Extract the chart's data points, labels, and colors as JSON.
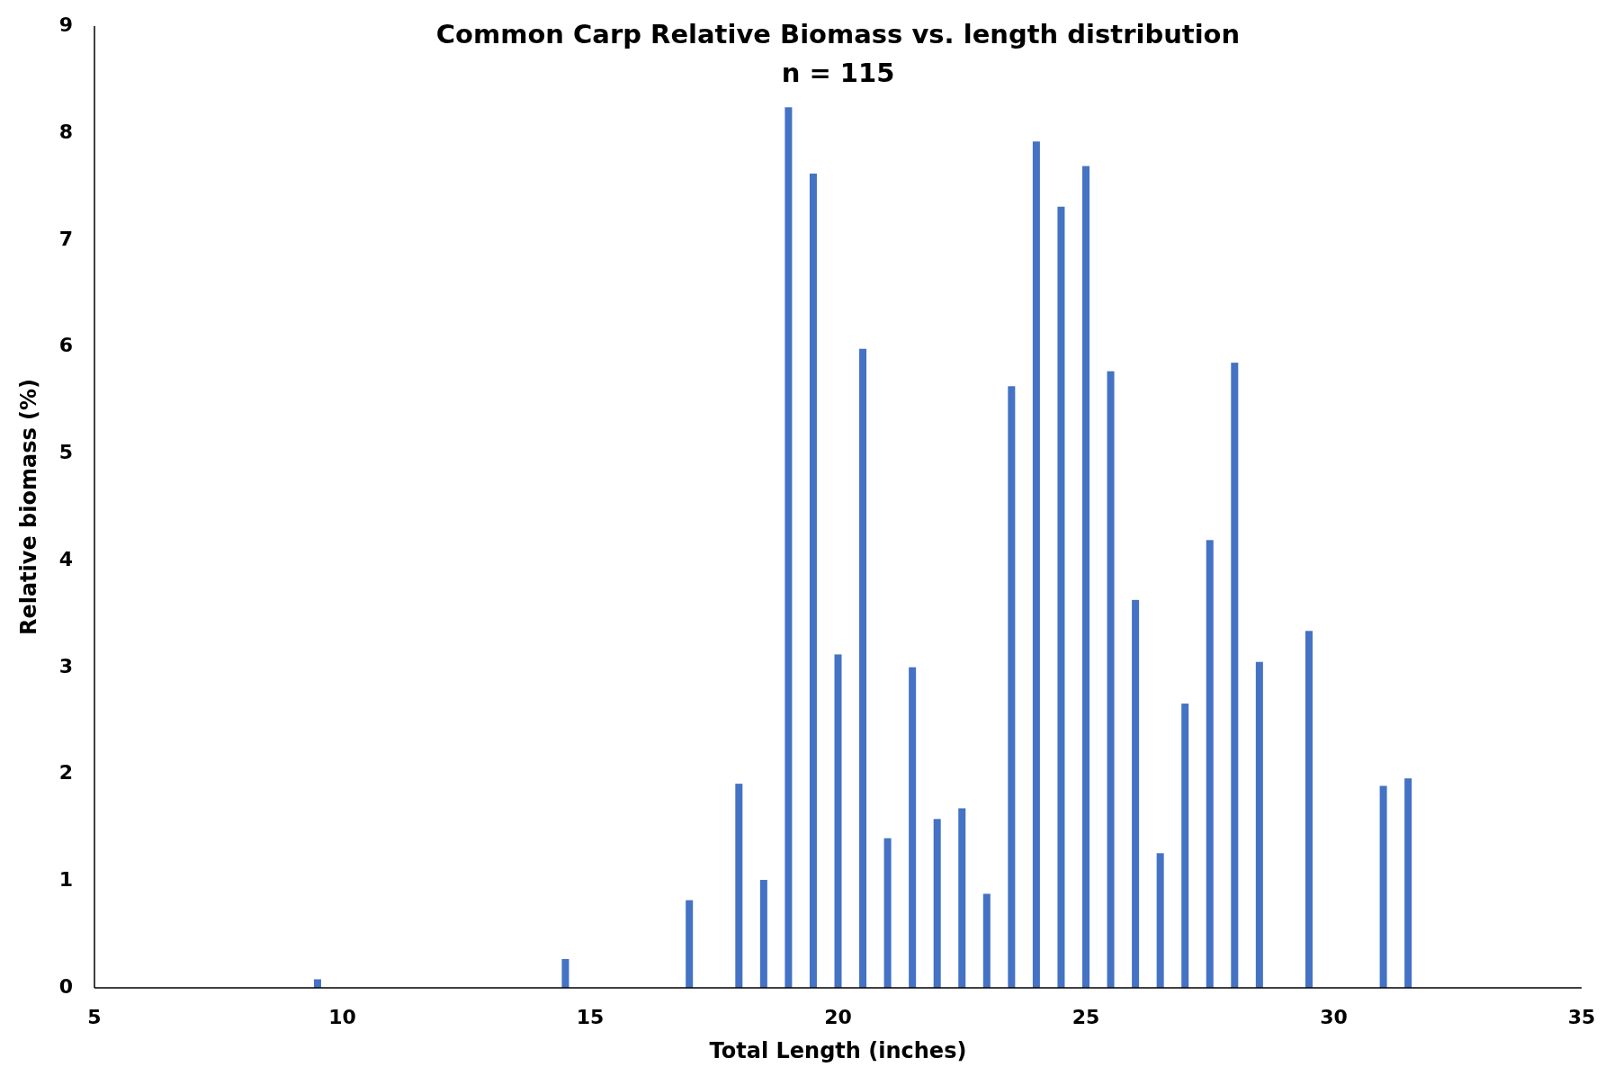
{
  "chart_data": {
    "type": "bar",
    "title": "Common Carp Relative Biomass vs. length distribution",
    "subtitle": "n = 115",
    "xlabel": "Total Length (inches)",
    "ylabel": "Relative biomass (%)",
    "x": [
      9.5,
      14.5,
      17,
      18,
      18.5,
      19,
      19.5,
      20,
      20.5,
      21,
      21.5,
      22,
      22.5,
      23,
      23.5,
      24,
      24.5,
      25,
      25.5,
      26,
      26.5,
      27,
      27.5,
      28,
      28.5,
      29.5,
      31,
      31.5
    ],
    "values": [
      0.08,
      0.27,
      0.82,
      1.91,
      1.01,
      8.24,
      7.62,
      3.12,
      5.98,
      1.4,
      3.0,
      1.58,
      1.68,
      0.88,
      5.63,
      7.92,
      7.31,
      7.69,
      5.77,
      3.63,
      1.26,
      2.66,
      4.19,
      5.85,
      3.05,
      3.34,
      1.89,
      1.96
    ],
    "color": "#4472c4",
    "xlim": [
      5,
      35
    ],
    "xticks": [
      5,
      10,
      15,
      20,
      25,
      30,
      35
    ],
    "ylim": [
      0,
      9
    ],
    "yticks": [
      0,
      1,
      2,
      3,
      4,
      5,
      6,
      7,
      8,
      9
    ],
    "grid": false
  }
}
